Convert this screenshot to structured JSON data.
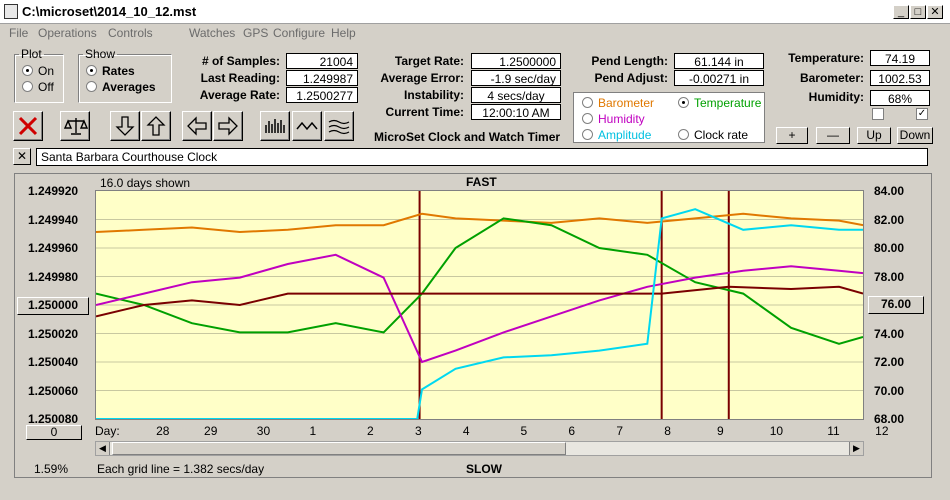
{
  "window": {
    "title": "C:\\microset\\2014_10_12.mst",
    "min": "_",
    "max": "□",
    "close": "✕"
  },
  "menu": [
    "File",
    "Operations",
    "Controls",
    "Watches",
    "GPS",
    "Configure",
    "Help"
  ],
  "plot_group": {
    "title": "Plot",
    "options": [
      "On",
      "Off"
    ],
    "selected": "On"
  },
  "show_group": {
    "title": "Show",
    "options": [
      "Rates",
      "Averages"
    ],
    "selected": "Rates"
  },
  "stats": {
    "samples_label": "# of Samples:",
    "samples": "21004",
    "last_label": "Last Reading:",
    "last": "1.249987",
    "avg_label": "Average Rate:",
    "avg": "1.2500277",
    "target_label": "Target Rate:",
    "target": "1.2500000",
    "error_label": "Average Error:",
    "error": "-1.9 sec/day",
    "instab_label": "Instability:",
    "instab": "4 secs/day",
    "time_label": "Current Time:",
    "time": "12:00:10 AM",
    "pendlen_label": "Pend Length:",
    "pendlen": "61.144 in",
    "pendadj_label": "Pend Adjust:",
    "pendadj": "-0.00271 in",
    "temp_label": "Temperature:",
    "temp": "74.19",
    "baro_label": "Barometer:",
    "baro": "1002.53",
    "hum_label": "Humidity:",
    "hum": "68%"
  },
  "app_title": "MicroSet Clock and Watch Timer",
  "sensor_options": [
    {
      "label": "Barometer",
      "color": "#e07800",
      "selected": false
    },
    {
      "label": "Temperature",
      "color": "#00a000",
      "selected": true
    },
    {
      "label": "Humidity",
      "color": "#c000c0",
      "selected": false
    },
    {
      "label": "Clock rate",
      "color": "#000000",
      "selected": false
    },
    {
      "label": "Amplitude",
      "color": "#00c0e0",
      "selected": false
    }
  ],
  "scale_buttons": [
    "+",
    "—",
    "Up",
    "Down"
  ],
  "toolbar_icons": [
    "stop-icon",
    "balance-icon",
    "arrow-down-icon",
    "arrow-up-icon",
    "arrow-left-icon",
    "arrow-right-icon",
    "bars-icon",
    "wave-icon",
    "multiwave-icon"
  ],
  "clock_name": "Santa Barbara Courthouse Clock",
  "chart_info": {
    "days_shown": "16.0 days shown",
    "top_label": "FAST",
    "bottom_label": "SLOW",
    "grid_note": "Each grid line = 1.382 secs/day",
    "percent": "1.59%",
    "x_prefix": "Day:",
    "left_value_btn": "1.250000",
    "right_value_btn": "76.00",
    "zero_btn": "0"
  },
  "chart_data": {
    "type": "line",
    "y_left_ticks": [
      "1.249920",
      "1.249940",
      "1.249960",
      "1.249980",
      "1.250000",
      "1.250020",
      "1.250040",
      "1.250060",
      "1.250080"
    ],
    "y_right_ticks": [
      "84.00",
      "82.00",
      "80.00",
      "78.00",
      "76.00",
      "74.00",
      "72.00",
      "70.00",
      "68.00"
    ],
    "x_ticks": [
      "28",
      "29",
      "30",
      "1",
      "2",
      "3",
      "4",
      "5",
      "6",
      "7",
      "8",
      "9",
      "10",
      "11",
      "12"
    ],
    "x_tick_days": [
      1.4,
      2.4,
      3.5,
      4.6,
      5.8,
      6.8,
      7.8,
      9.0,
      10.0,
      11.0,
      12.0,
      13.1,
      14.2,
      15.4,
      16.4
    ],
    "x_range_days": [
      0,
      16
    ],
    "markers_days": [
      6.75,
      11.8,
      13.2
    ],
    "series": [
      {
        "name": "Barometer",
        "color": "#e07800",
        "y_pct": [
          [
            0,
            0.82
          ],
          [
            1,
            0.83
          ],
          [
            2,
            0.84
          ],
          [
            3,
            0.82
          ],
          [
            4,
            0.83
          ],
          [
            5,
            0.85
          ],
          [
            6,
            0.85
          ],
          [
            6.8,
            0.9
          ],
          [
            7.5,
            0.88
          ],
          [
            8.5,
            0.87
          ],
          [
            9.5,
            0.86
          ],
          [
            10.5,
            0.88
          ],
          [
            11.5,
            0.86
          ],
          [
            12.5,
            0.88
          ],
          [
            13.5,
            0.9
          ],
          [
            14.5,
            0.88
          ],
          [
            15.5,
            0.87
          ],
          [
            16,
            0.85
          ]
        ]
      },
      {
        "name": "Temperature",
        "color": "#00a000",
        "y_pct": [
          [
            0,
            0.55
          ],
          [
            1,
            0.5
          ],
          [
            2,
            0.42
          ],
          [
            3,
            0.38
          ],
          [
            4,
            0.38
          ],
          [
            5,
            0.42
          ],
          [
            6,
            0.38
          ],
          [
            6.8,
            0.55
          ],
          [
            7.5,
            0.75
          ],
          [
            8.5,
            0.88
          ],
          [
            9.5,
            0.85
          ],
          [
            10.5,
            0.75
          ],
          [
            11.5,
            0.72
          ],
          [
            12.5,
            0.6
          ],
          [
            13.5,
            0.55
          ],
          [
            14.5,
            0.4
          ],
          [
            15.5,
            0.33
          ],
          [
            16,
            0.36
          ]
        ]
      },
      {
        "name": "Humidity",
        "color": "#c000c0",
        "y_pct": [
          [
            0,
            0.5
          ],
          [
            1,
            0.55
          ],
          [
            2,
            0.6
          ],
          [
            3,
            0.62
          ],
          [
            4,
            0.68
          ],
          [
            5,
            0.72
          ],
          [
            6,
            0.62
          ],
          [
            6.8,
            0.25
          ],
          [
            7.5,
            0.3
          ],
          [
            8.5,
            0.38
          ],
          [
            9.5,
            0.45
          ],
          [
            10.5,
            0.52
          ],
          [
            11.5,
            0.58
          ],
          [
            12.5,
            0.62
          ],
          [
            13.5,
            0.65
          ],
          [
            14.5,
            0.67
          ],
          [
            15.5,
            0.65
          ],
          [
            16,
            0.64
          ]
        ]
      },
      {
        "name": "Clock rate",
        "color": "#7a0000",
        "y_pct": [
          [
            0,
            0.45
          ],
          [
            1,
            0.5
          ],
          [
            2,
            0.52
          ],
          [
            3,
            0.5
          ],
          [
            4,
            0.55
          ],
          [
            5,
            0.55
          ],
          [
            6,
            0.55
          ],
          [
            6.8,
            0.55
          ],
          [
            11.8,
            0.55
          ],
          [
            13.2,
            0.58
          ],
          [
            14.5,
            0.57
          ],
          [
            15.5,
            0.58
          ],
          [
            16,
            0.55
          ]
        ]
      },
      {
        "name": "Amplitude",
        "color": "#00d8f0",
        "y_pct": [
          [
            0,
            0
          ],
          [
            6.7,
            0
          ],
          [
            6.8,
            0.13
          ],
          [
            7.5,
            0.22
          ],
          [
            8.5,
            0.27
          ],
          [
            9.5,
            0.28
          ],
          [
            10.5,
            0.3
          ],
          [
            11.5,
            0.33
          ],
          [
            11.8,
            0.88
          ],
          [
            12.5,
            0.92
          ],
          [
            13.5,
            0.83
          ],
          [
            14.5,
            0.85
          ],
          [
            15.5,
            0.83
          ],
          [
            16,
            0.83
          ]
        ]
      }
    ]
  }
}
